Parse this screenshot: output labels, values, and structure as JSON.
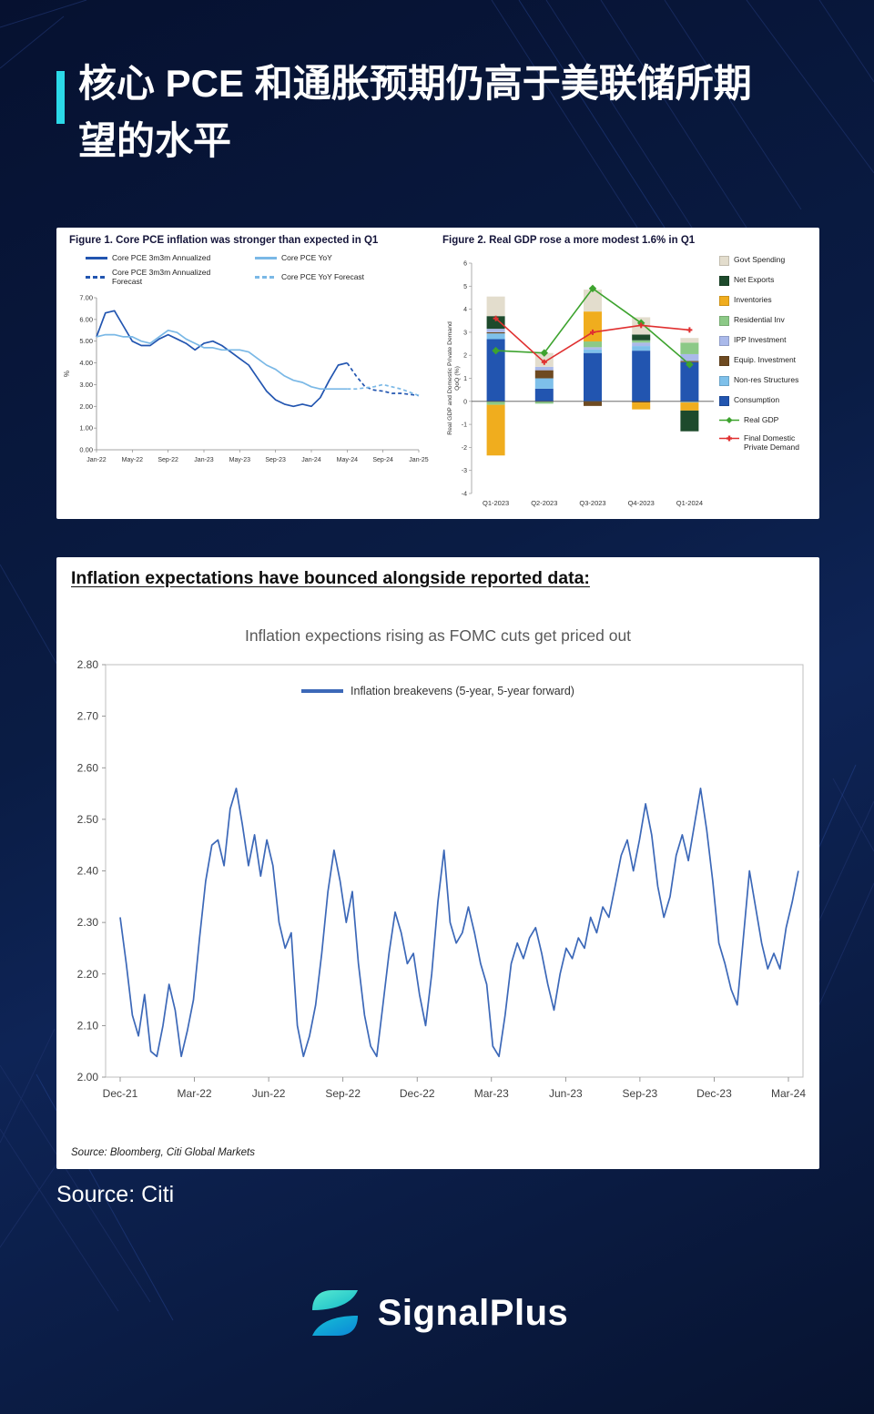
{
  "page": {
    "title_line1": "核心 PCE 和通胀预期仍高于美联储所期",
    "title_line2": "望的水平",
    "source": "Source: Citi",
    "brand": "SignalPlus",
    "accent_color": "#2bd9e8"
  },
  "inflation_panel": {
    "heading": "Inflation expectations have bounced alongside reported data:",
    "source_note": "Source: Bloomberg, Citi Global Markets"
  },
  "chart_data": [
    {
      "id": "fig1",
      "type": "line",
      "title": "Figure 1. Core PCE inflation was stronger than expected in Q1",
      "ylabel": "%",
      "ylim": [
        0,
        7
      ],
      "ytick_step": 1,
      "n_points": 37,
      "x_tick_labels": [
        "Jan-22",
        "May-22",
        "Sep-22",
        "Jan-23",
        "May-23",
        "Sep-23",
        "Jan-24",
        "May-24",
        "Sep-24",
        "Jan-25"
      ],
      "x_tick_indices": [
        0,
        4,
        8,
        12,
        16,
        20,
        24,
        28,
        32,
        36
      ],
      "series": [
        {
          "name": "Core PCE 3m3m Annualized",
          "color": "#2255b0",
          "dash": false,
          "values": [
            5.2,
            6.3,
            6.4,
            5.7,
            5.0,
            4.8,
            4.8,
            5.1,
            5.3,
            5.1,
            4.9,
            4.6,
            4.9,
            5.0,
            4.8,
            4.5,
            4.2,
            3.9,
            3.3,
            2.7,
            2.3,
            2.1,
            2.0,
            2.1,
            2.0,
            2.4,
            3.2,
            3.9,
            4.0,
            null,
            null,
            null,
            null,
            null,
            null,
            null,
            null
          ]
        },
        {
          "name": "Core PCE YoY",
          "color": "#7ab8e6",
          "dash": false,
          "values": [
            5.2,
            5.3,
            5.3,
            5.2,
            5.2,
            5.0,
            4.9,
            5.2,
            5.5,
            5.4,
            5.1,
            4.9,
            4.7,
            4.7,
            4.6,
            4.6,
            4.6,
            4.5,
            4.2,
            3.9,
            3.7,
            3.4,
            3.2,
            3.1,
            2.9,
            2.8,
            2.8,
            2.8,
            2.8,
            null,
            null,
            null,
            null,
            null,
            null,
            null,
            null
          ]
        },
        {
          "name": "Core PCE 3m3m Annualized Forecast",
          "color": "#2255b0",
          "dash": true,
          "values": [
            null,
            null,
            null,
            null,
            null,
            null,
            null,
            null,
            null,
            null,
            null,
            null,
            null,
            null,
            null,
            null,
            null,
            null,
            null,
            null,
            null,
            null,
            null,
            null,
            null,
            null,
            null,
            null,
            4.0,
            3.4,
            2.9,
            2.75,
            2.7,
            2.6,
            2.6,
            2.55,
            2.5
          ]
        },
        {
          "name": "Core PCE YoY Forecast",
          "color": "#7ab8e6",
          "dash": true,
          "values": [
            null,
            null,
            null,
            null,
            null,
            null,
            null,
            null,
            null,
            null,
            null,
            null,
            null,
            null,
            null,
            null,
            null,
            null,
            null,
            null,
            null,
            null,
            null,
            null,
            null,
            null,
            null,
            null,
            2.8,
            2.8,
            2.85,
            2.9,
            3.0,
            2.9,
            2.8,
            2.65,
            2.5
          ]
        }
      ]
    },
    {
      "id": "fig2",
      "type": "stacked_bar_line",
      "title": "Figure 2. Real GDP rose a more modest 1.6% in Q1",
      "ylabel_lines": [
        "Real GDP and Domestic Private Demand",
        "QoQ (%)"
      ],
      "ylim": [
        -4,
        6
      ],
      "categories": [
        "Q1-2023",
        "Q2-2023",
        "Q3-2023",
        "Q4-2023",
        "Q1-2024"
      ],
      "bar_series": [
        {
          "name": "Govt Spending",
          "color": "#e3ddcd",
          "values": [
            0.85,
            0.6,
            0.95,
            0.75,
            0.2
          ]
        },
        {
          "name": "Net Exports",
          "color": "#1d4a2c",
          "values": [
            0.55,
            0.0,
            0.0,
            0.25,
            -0.9
          ]
        },
        {
          "name": "Inventories",
          "color": "#f0ad1e",
          "values": [
            -2.2,
            0.0,
            1.3,
            -0.3,
            -0.35
          ]
        },
        {
          "name": "Residential Inv",
          "color": "#8cc987",
          "values": [
            -0.15,
            -0.1,
            0.25,
            0.1,
            0.5
          ]
        },
        {
          "name": "IPP Investment",
          "color": "#aab9ea",
          "values": [
            0.15,
            0.15,
            0.1,
            0.15,
            0.3
          ]
        },
        {
          "name": "Equip. Investment",
          "color": "#6e4a21",
          "values": [
            0.05,
            0.35,
            -0.2,
            -0.05,
            0.05
          ]
        },
        {
          "name": "Non-res Structures",
          "color": "#7ec0ea",
          "values": [
            0.25,
            0.45,
            0.15,
            0.2,
            -0.05
          ]
        },
        {
          "name": "Consumption",
          "color": "#2255b0",
          "values": [
            2.7,
            0.55,
            2.1,
            2.2,
            1.7
          ]
        }
      ],
      "line_series": [
        {
          "name": "Real GDP",
          "color": "#3da32e",
          "marker": "diamond",
          "values": [
            2.2,
            2.1,
            4.9,
            3.4,
            1.6
          ]
        },
        {
          "name": "Final Domestic Private Demand",
          "color": "#e03030",
          "marker": "cross",
          "values": [
            3.6,
            1.7,
            3.0,
            3.3,
            3.1
          ]
        }
      ]
    },
    {
      "id": "fig3",
      "type": "line",
      "title": "Inflation expections rising as FOMC cuts get priced out",
      "legend": "Inflation breakevens (5-year, 5-year forward)",
      "line_color": "#3c68b8",
      "ylim": [
        2.0,
        2.8
      ],
      "ytick_step": 0.1,
      "x_tick_labels": [
        "Dec-21",
        "Mar-22",
        "Jun-22",
        "Sep-22",
        "Dec-22",
        "Mar-23",
        "Jun-23",
        "Sep-23",
        "Dec-23",
        "Mar-24"
      ],
      "x_tick_months": [
        0,
        3,
        6,
        9,
        12,
        15,
        18,
        21,
        24,
        27
      ],
      "values": [
        2.31,
        2.22,
        2.12,
        2.08,
        2.16,
        2.05,
        2.04,
        2.1,
        2.18,
        2.13,
        2.04,
        2.09,
        2.15,
        2.27,
        2.38,
        2.45,
        2.46,
        2.41,
        2.52,
        2.56,
        2.49,
        2.41,
        2.47,
        2.39,
        2.46,
        2.41,
        2.3,
        2.25,
        2.28,
        2.1,
        2.04,
        2.08,
        2.14,
        2.24,
        2.36,
        2.44,
        2.38,
        2.3,
        2.36,
        2.22,
        2.12,
        2.06,
        2.04,
        2.14,
        2.24,
        2.32,
        2.28,
        2.22,
        2.24,
        2.16,
        2.1,
        2.2,
        2.34,
        2.44,
        2.3,
        2.26,
        2.28,
        2.33,
        2.28,
        2.22,
        2.18,
        2.06,
        2.04,
        2.12,
        2.22,
        2.26,
        2.23,
        2.27,
        2.29,
        2.24,
        2.18,
        2.13,
        2.2,
        2.25,
        2.23,
        2.27,
        2.25,
        2.31,
        2.28,
        2.33,
        2.31,
        2.37,
        2.43,
        2.46,
        2.4,
        2.46,
        2.53,
        2.47,
        2.37,
        2.31,
        2.35,
        2.43,
        2.47,
        2.42,
        2.49,
        2.56,
        2.48,
        2.38,
        2.26,
        2.22,
        2.17,
        2.14,
        2.27,
        2.4,
        2.33,
        2.26,
        2.21,
        2.24,
        2.21,
        2.29,
        2.34,
        2.4
      ]
    }
  ]
}
